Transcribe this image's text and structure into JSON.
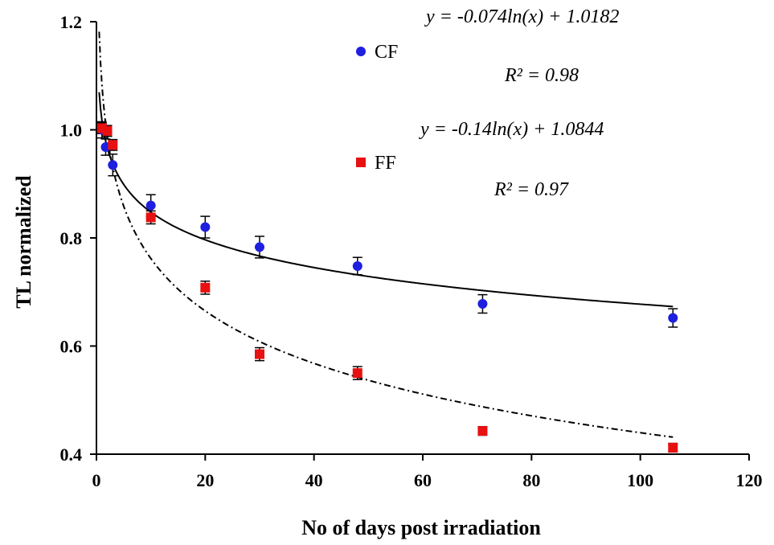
{
  "chart_data": {
    "type": "scatter",
    "xlabel": "No of days post irradiation",
    "ylabel": "TL normalized",
    "xlim": [
      0,
      120
    ],
    "ylim": [
      0.4,
      1.2
    ],
    "x_ticks": [
      "0",
      "20",
      "40",
      "60",
      "80",
      "100",
      "120"
    ],
    "y_ticks": [
      "0.4",
      "0.6",
      "0.8",
      "1.0",
      "1.2"
    ],
    "grid": false,
    "legend_position": "top-center",
    "series": [
      {
        "name": "CF",
        "color": "#1f1fe0",
        "marker": "circle",
        "x": [
          1,
          1.7,
          3,
          10,
          20,
          30,
          48,
          71,
          106
        ],
        "y": [
          1.0,
          0.968,
          0.935,
          0.86,
          0.82,
          0.783,
          0.748,
          0.678,
          0.652
        ],
        "error": [
          0.015,
          0.015,
          0.02,
          0.02,
          0.02,
          0.02,
          0.016,
          0.017,
          0.017
        ],
        "fit": {
          "line_style": "solid",
          "a": -0.074,
          "b": 1.0182,
          "equation": "y = -0.074ln(x) + 1.0182",
          "r2": "R² = 0.98"
        }
      },
      {
        "name": "FF",
        "color": "#e81010",
        "marker": "square",
        "x": [
          1,
          2,
          3,
          10,
          20,
          30,
          48,
          71,
          106
        ],
        "y": [
          1.003,
          0.998,
          0.972,
          0.838,
          0.708,
          0.585,
          0.55,
          0.443,
          0.412
        ],
        "error": [
          0.01,
          0.01,
          0.01,
          0.012,
          0.012,
          0.012,
          0.012,
          0.008,
          0.008
        ],
        "fit": {
          "line_style": "dash-dot",
          "a": -0.14,
          "b": 1.0844,
          "equation": "y = -0.14ln(x) + 1.0844",
          "r2": "R² = 0.97"
        }
      }
    ]
  }
}
